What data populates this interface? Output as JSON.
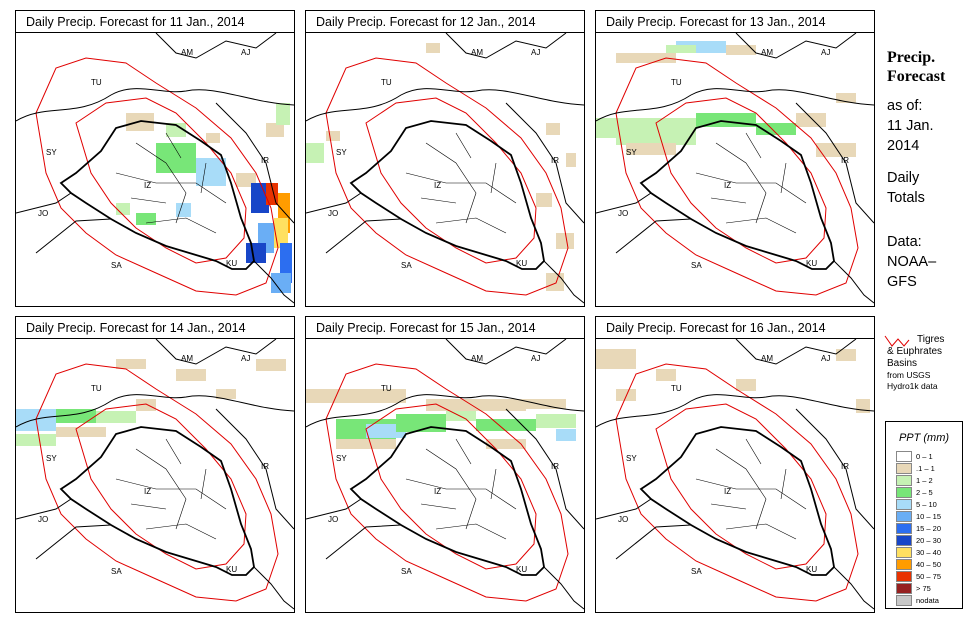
{
  "panels": [
    {
      "title": "Daily Precip. Forecast for  11 Jan., 2014"
    },
    {
      "title": "Daily Precip. Forecast for  12 Jan., 2014"
    },
    {
      "title": "Daily Precip. Forecast for  13 Jan., 2014"
    },
    {
      "title": "Daily Precip. Forecast for  14 Jan., 2014"
    },
    {
      "title": "Daily Precip. Forecast for  15 Jan., 2014"
    },
    {
      "title": "Daily Precip. Forecast for  16 Jan., 2014"
    }
  ],
  "map_labels": {
    "am": "AM",
    "aj": "AJ",
    "tu": "TU",
    "sy": "SY",
    "ir": "IR",
    "iz": "IZ",
    "jo": "JO",
    "sa": "SA",
    "ku": "KU"
  },
  "side": {
    "title_line1": "Precip.",
    "title_line2": "Forecast",
    "asof": "as of:",
    "date1": "11 Jan.",
    "date2": "2014",
    "daily1": "Daily",
    "daily2": "Totals",
    "data1": "Data:",
    "data2": "NOAA–",
    "data3": "GFS"
  },
  "basin_legend": {
    "line1": "Tigres",
    "line2": "& Euphrates",
    "line3": "Basins",
    "line4": "from USGS",
    "line5": "Hydro1k data"
  },
  "legend": {
    "title": "PPT (mm)",
    "items": [
      {
        "label": "0 – 1",
        "color": "#ffffff"
      },
      {
        "label": ".1 – 1",
        "color": "#e8d8b8"
      },
      {
        "label": "1 – 2",
        "color": "#c6f2b4"
      },
      {
        "label": "2 – 5",
        "color": "#78e678"
      },
      {
        "label": "5 – 10",
        "color": "#a8dcf8"
      },
      {
        "label": "10 – 15",
        "color": "#6aaef5"
      },
      {
        "label": "15 – 20",
        "color": "#2c6ef0"
      },
      {
        "label": "20 – 30",
        "color": "#1846c8"
      },
      {
        "label": "30 – 40",
        "color": "#ffe060"
      },
      {
        "label": "40 – 50",
        "color": "#ff9c00"
      },
      {
        "label": "50 – 75",
        "color": "#e83200"
      },
      {
        "label": "> 75",
        "color": "#962020"
      },
      {
        "label": "nodata",
        "color": "#c8c8c8"
      }
    ]
  },
  "colors": {
    "basin": "#e00000",
    "border": "#000000"
  }
}
